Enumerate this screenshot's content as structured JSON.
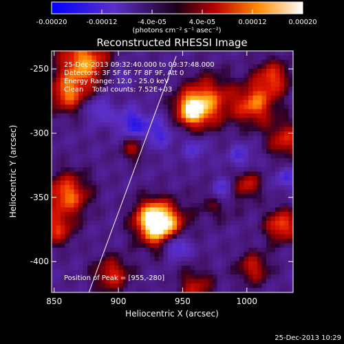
{
  "chart_data": {
    "type": "heatmap",
    "title": "Reconstructed RHESSI Image",
    "xlabel": "Heliocentric X (arcsec)",
    "ylabel": "Heliocentric Y (arcsec)",
    "xlim": [
      848,
      1036
    ],
    "ylim": [
      -424,
      -236
    ],
    "xticks": [
      850,
      900,
      950,
      1000
    ],
    "yticks": [
      -250,
      -300,
      -350,
      -400
    ],
    "colorbar": {
      "range": [
        -0.0002,
        0.0002
      ],
      "ticks": [
        {
          "value": -0.0002,
          "label": "-0.00020"
        },
        {
          "value": -0.00012,
          "label": "-0.00012"
        },
        {
          "value": -4e-05,
          "label": "-4.0e-05"
        },
        {
          "value": 4e-05,
          "label": "4.0e-05"
        },
        {
          "value": 0.00012,
          "label": "0.00012"
        },
        {
          "value": 0.0002,
          "label": "0.00020"
        }
      ],
      "unit": "(photons cm⁻² s⁻¹ asec⁻²)"
    },
    "annotations": [
      "25-Dec-2013 09:32:40.000 to 09:37:48.000",
      "Detectors: 3F 5F 6F 7F 8F 9F, Att 0",
      "Energy Range: 12.0 - 25.0 keV",
      "Clean    Total counts: 7.52E+03"
    ],
    "peak_label": "Position of Peak = [955,-280]",
    "limb_line": [
      [
        877,
        -424
      ],
      [
        945,
        -240
      ]
    ],
    "hot_spots": [
      {
        "x": 935,
        "y": -373,
        "r": 12,
        "v": 0.0002
      },
      {
        "x": 926,
        "y": -366,
        "r": 10,
        "v": 0.00016
      },
      {
        "x": 873,
        "y": -245,
        "r": 14,
        "v": 0.00018
      },
      {
        "x": 860,
        "y": -270,
        "r": 10,
        "v": 0.00014
      },
      {
        "x": 957,
        "y": -282,
        "r": 9,
        "v": 0.00019
      },
      {
        "x": 970,
        "y": -275,
        "r": 14,
        "v": 0.00014
      },
      {
        "x": 1006,
        "y": -278,
        "r": 11,
        "v": 0.00015
      },
      {
        "x": 1020,
        "y": -257,
        "r": 10,
        "v": 0.00013
      },
      {
        "x": 1030,
        "y": -305,
        "r": 10,
        "v": 0.00012
      },
      {
        "x": 1027,
        "y": -372,
        "r": 9,
        "v": 0.00015
      },
      {
        "x": 860,
        "y": -348,
        "r": 12,
        "v": 0.00016
      },
      {
        "x": 852,
        "y": -375,
        "r": 9,
        "v": 0.00012
      },
      {
        "x": 978,
        "y": -350,
        "r": 10,
        "v": 0.00014
      },
      {
        "x": 1000,
        "y": -340,
        "r": 8,
        "v": 0.00011
      },
      {
        "x": 895,
        "y": -410,
        "r": 10,
        "v": 0.00012
      },
      {
        "x": 1005,
        "y": -405,
        "r": 9,
        "v": 0.00011
      },
      {
        "x": 912,
        "y": -312,
        "r": 7,
        "v": 9e-05
      },
      {
        "x": 960,
        "y": -420,
        "r": 10,
        "v": 0.0001
      }
    ],
    "cold_spots": [
      {
        "x": 980,
        "y": -346,
        "r": 8,
        "v": -0.00018
      },
      {
        "x": 945,
        "y": -387,
        "r": 7,
        "v": -0.00015
      },
      {
        "x": 910,
        "y": -292,
        "r": 8,
        "v": -0.0001
      },
      {
        "x": 930,
        "y": -300,
        "r": 9,
        "v": -8e-05
      },
      {
        "x": 885,
        "y": -282,
        "r": 7,
        "v": -8e-05
      },
      {
        "x": 995,
        "y": -318,
        "r": 7,
        "v": -7e-05
      },
      {
        "x": 1030,
        "y": -335,
        "r": 6,
        "v": -7e-05
      },
      {
        "x": 900,
        "y": -255,
        "r": 7,
        "v": -6e-05
      },
      {
        "x": 960,
        "y": -312,
        "r": 7,
        "v": -6e-05
      }
    ]
  },
  "footer": {
    "timestamp": "25-Dec-2013 10:29"
  }
}
